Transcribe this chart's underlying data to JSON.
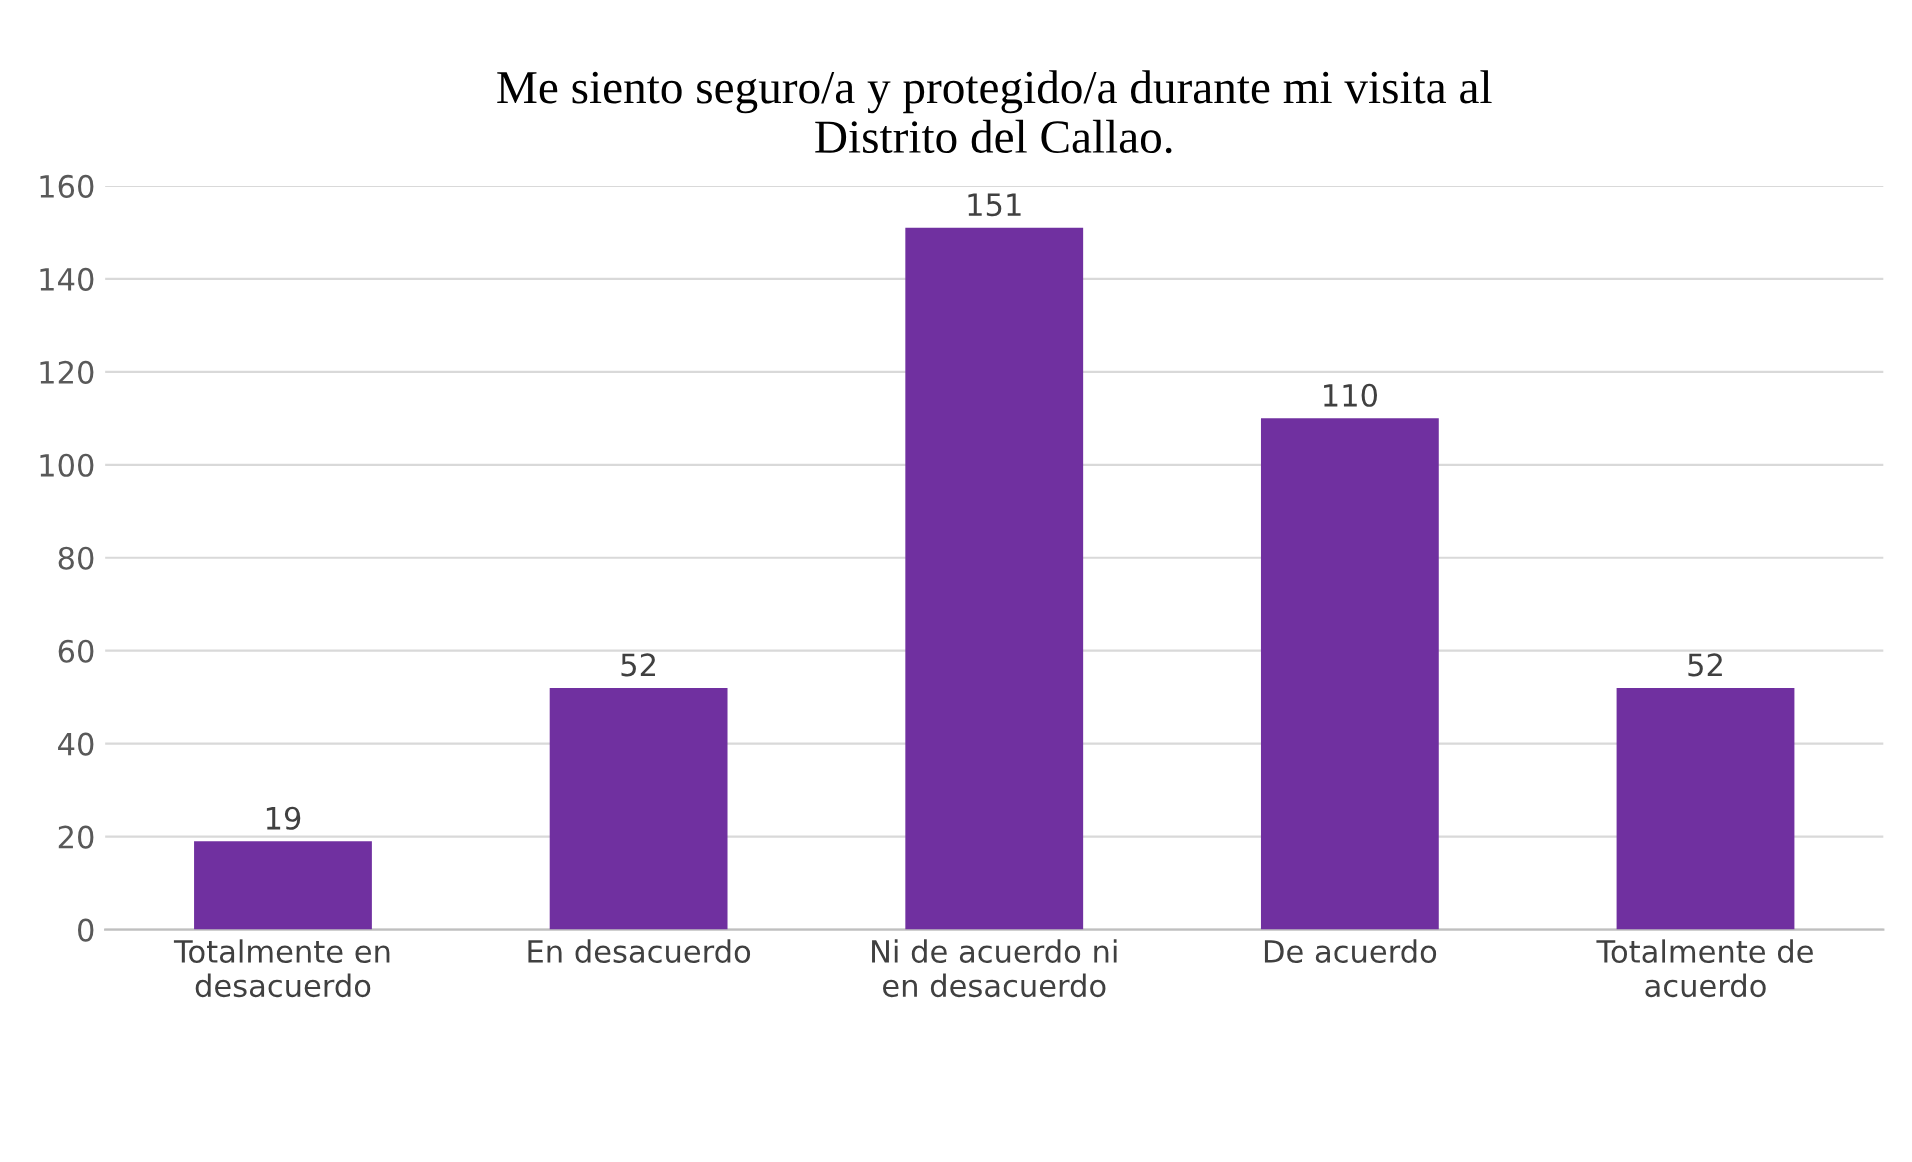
{
  "chart_data": {
    "type": "bar",
    "title": "Me siento seguro/a y protegido/a durante mi visita al\nDistrito del Callao.",
    "categories": [
      "Totalmente en\ndesacuerdo",
      "En desacuerdo",
      "Ni de acuerdo ni\nen desacuerdo",
      "De acuerdo",
      "Totalmente de\nacuerdo"
    ],
    "values": [
      19,
      52,
      151,
      110,
      52
    ],
    "color": "#7030a0",
    "ylim": [
      0,
      160
    ],
    "yticks": [
      0,
      20,
      40,
      60,
      80,
      100,
      120,
      140,
      160
    ],
    "grid": "y",
    "data_labels": true
  }
}
